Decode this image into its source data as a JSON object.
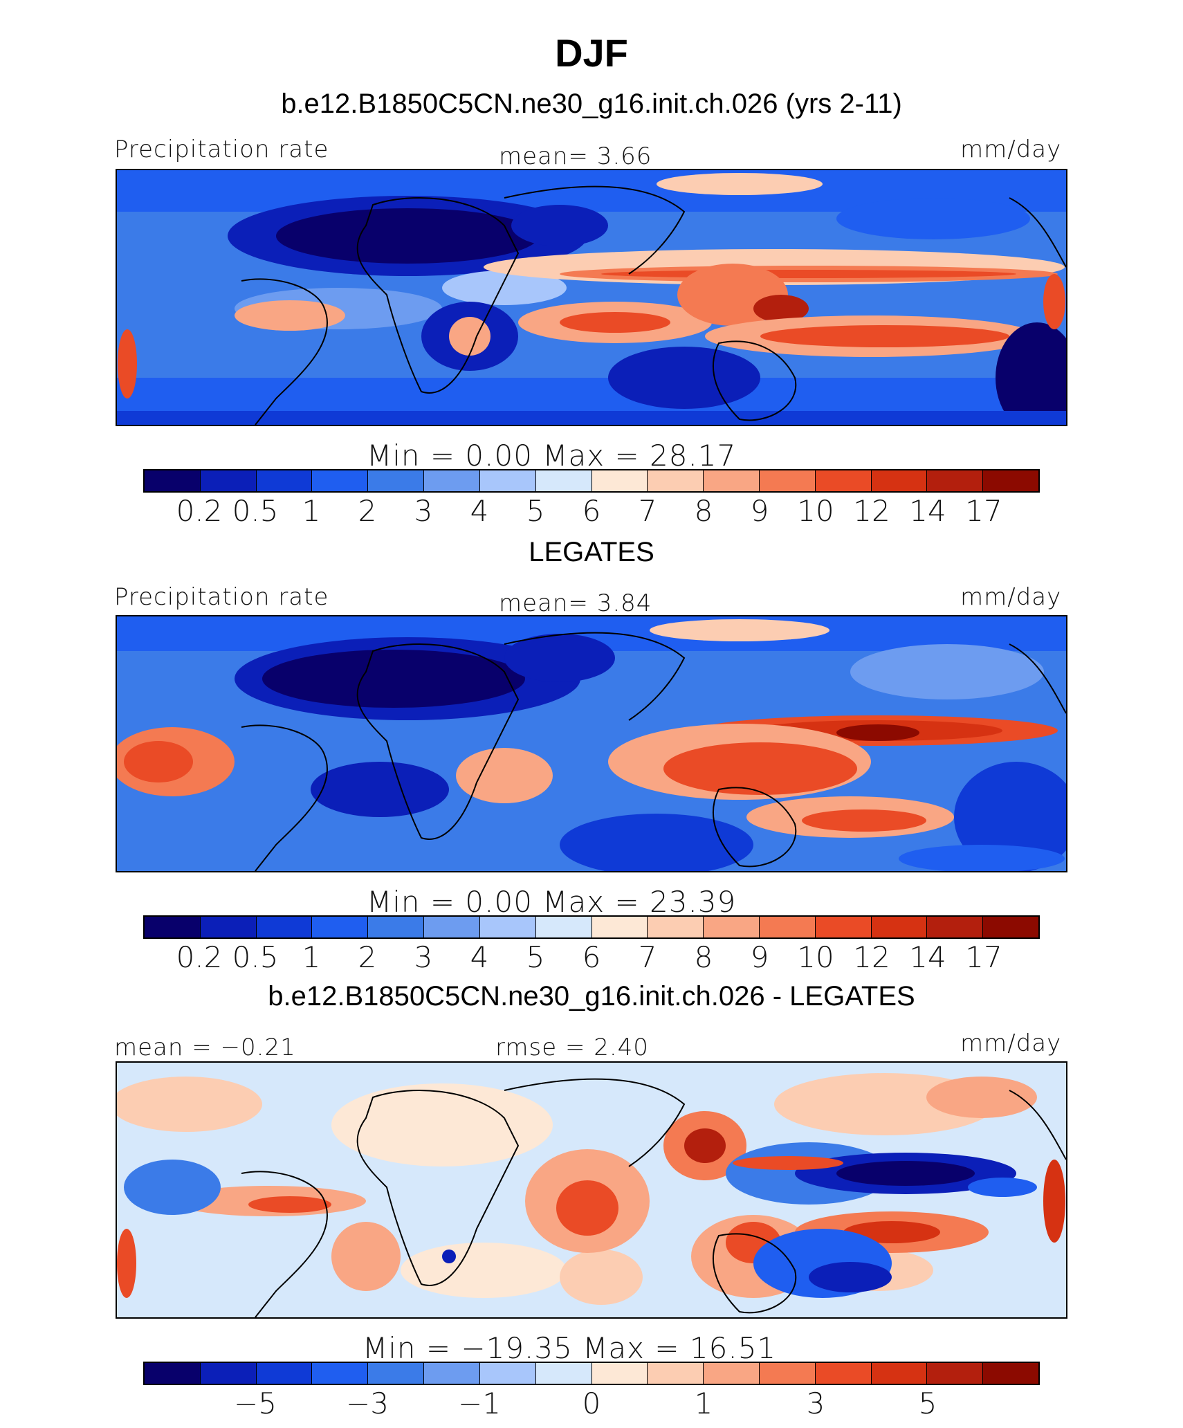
{
  "title": "DJF",
  "colors": [
    "#08006b",
    "#0b1fb8",
    "#0f3ad6",
    "#1f5ef0",
    "#3b7be8",
    "#6d9cf0",
    "#a8c6fb",
    "#d6e8fb",
    "#fde8d6",
    "#fccdb2",
    "#f9a684",
    "#f47a52",
    "#ea4b26",
    "#d63212",
    "#b31f0d",
    "#8c0a00"
  ],
  "land_color": "#000000",
  "panels": [
    {
      "title": "b.e12.B1850C5CN.ne30_g16.init.ch.026 (yrs 2-11)",
      "left_label": "Precipitation rate",
      "center_label": "mean=    3.66",
      "right_label": "mm/day",
      "minmax": "Min  =     0.00  Max  =   28.17",
      "ticks": [
        "0.2",
        "0.5",
        "1",
        "2",
        "3",
        "4",
        "5",
        "6",
        "7",
        "8",
        "9",
        "10",
        "12",
        "14",
        "17"
      ]
    },
    {
      "title": "LEGATES",
      "left_label": "Precipitation rate",
      "center_label": "mean=    3.84",
      "right_label": "mm/day",
      "minmax": "Min  =     0.00  Max  =   23.39",
      "ticks": [
        "0.2",
        "0.5",
        "1",
        "2",
        "3",
        "4",
        "5",
        "6",
        "7",
        "8",
        "9",
        "10",
        "12",
        "14",
        "17"
      ]
    },
    {
      "title": "b.e12.B1850C5CN.ne30_g16.init.ch.026 - LEGATES",
      "left_label": "mean  =   −0.21",
      "center_label": "rmse  =    2.40",
      "right_label": "mm/day",
      "minmax": "Min  =  −19.35  Max  =   16.51",
      "ticks": [
        "−5",
        "−3",
        "−1",
        "0",
        "1",
        "3",
        "5"
      ]
    }
  ]
}
